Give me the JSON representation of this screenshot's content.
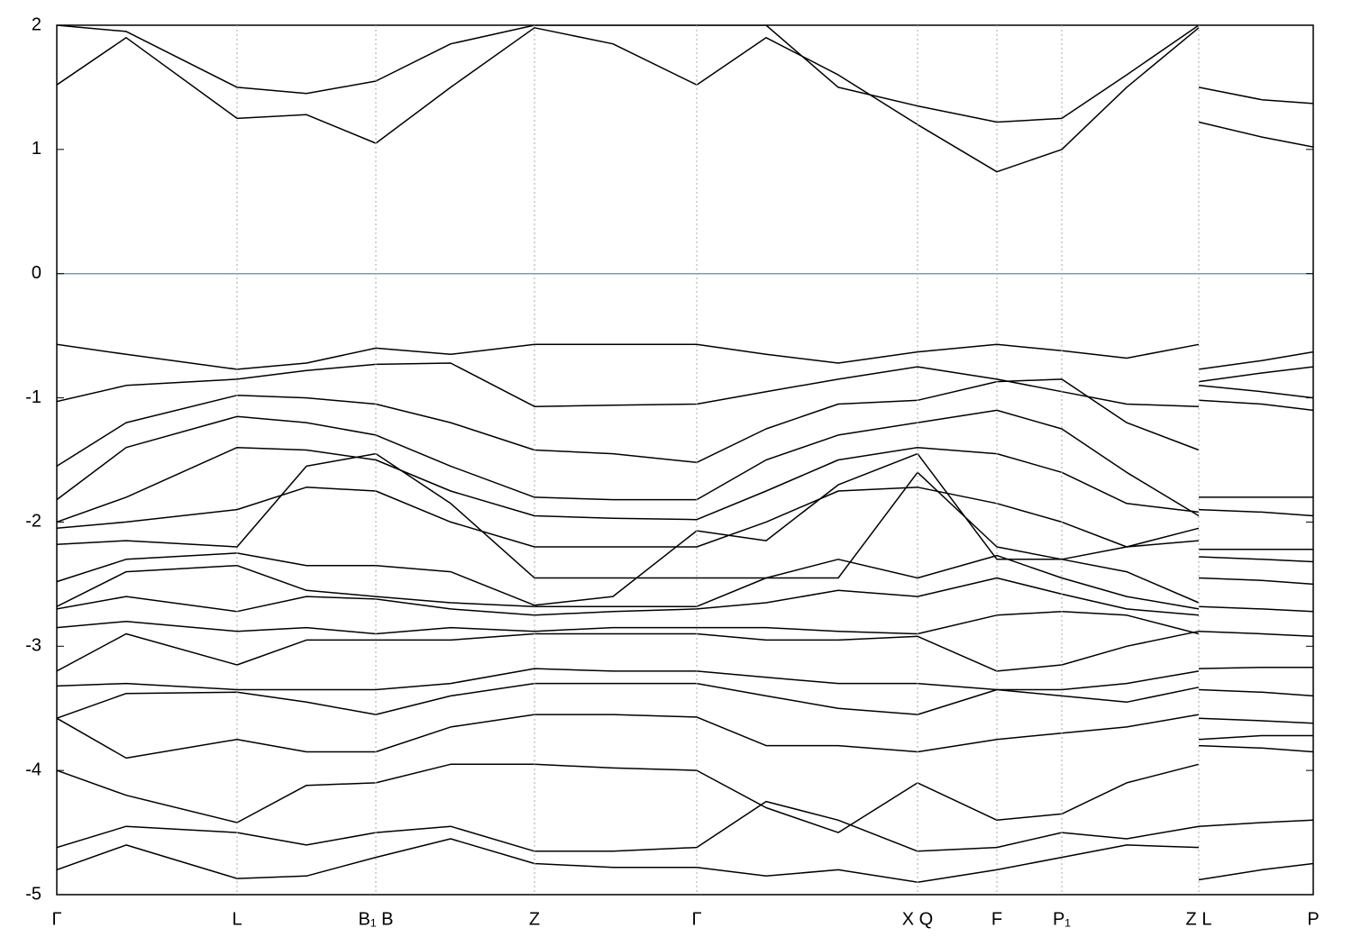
{
  "chart_data": {
    "type": "line",
    "x": [
      0,
      0.077,
      0.2,
      0.277,
      0.354,
      0.437,
      0.53,
      0.617,
      0.71,
      0.787,
      0.867,
      0.955,
      1.043,
      1.115,
      1.187,
      1.267,
      1.267,
      1.267,
      1.337,
      1.394
    ],
    "xlim": [
      0,
      1.394
    ],
    "xticks": [
      {
        "value": 0,
        "label": "Γ"
      },
      {
        "value": 0.2,
        "label": "L"
      },
      {
        "value": 0.354,
        "label": "B₁ B"
      },
      {
        "value": 0.53,
        "label": "Z"
      },
      {
        "value": 0.71,
        "label": "Γ"
      },
      {
        "value": 0.955,
        "label": "X Q"
      },
      {
        "value": 1.043,
        "label": "F"
      },
      {
        "value": 1.115,
        "label": "P₁"
      },
      {
        "value": 1.267,
        "label": "Z L"
      },
      {
        "value": 1.394,
        "label": "P"
      }
    ],
    "ylim": [
      -5,
      2
    ],
    "yticks": [
      -5,
      -4,
      -3,
      -2,
      -1,
      0,
      1,
      2
    ],
    "grid": "x-dotted",
    "reference_line": {
      "value": 0,
      "color": "#5aa9c7"
    },
    "series": [
      {
        "color": "#000000",
        "values": [
          1.52,
          1.9,
          1.25,
          1.28,
          1.05,
          1.5,
          1.98,
          1.85,
          1.52,
          1.9,
          1.6,
          1.2,
          0.82,
          1.0,
          1.5,
          1.98,
          null,
          1.22,
          1.1,
          1.02
        ]
      },
      {
        "color": "#000000",
        "values": [
          2.0,
          1.95,
          1.5,
          1.45,
          1.55,
          1.85,
          2.0,
          2.0,
          2.0,
          2.0,
          1.5,
          1.35,
          1.22,
          1.25,
          1.6,
          2.0,
          null,
          1.5,
          1.4,
          1.37
        ]
      },
      {
        "color": "#000000",
        "values": [
          -0.57,
          -0.65,
          -0.77,
          -0.72,
          -0.6,
          -0.65,
          -0.57,
          -0.57,
          -0.57,
          -0.65,
          -0.72,
          -0.63,
          -0.57,
          -0.62,
          -0.68,
          -0.57,
          null,
          -0.77,
          -0.7,
          -0.63
        ]
      },
      {
        "color": "#000000",
        "values": [
          -1.03,
          -0.9,
          -0.85,
          -0.78,
          -0.73,
          -0.72,
          -1.07,
          -1.06,
          -1.05,
          -0.95,
          -0.85,
          -0.75,
          -0.85,
          -0.95,
          -1.05,
          -1.07,
          null,
          -0.87,
          -0.8,
          -0.75
        ]
      },
      {
        "color": "#000000",
        "values": [
          -1.55,
          -1.2,
          -0.98,
          -1.0,
          -1.05,
          -1.2,
          -1.42,
          -1.45,
          -1.52,
          -1.25,
          -1.05,
          -1.02,
          -0.87,
          -0.85,
          -1.2,
          -1.42,
          null,
          -0.9,
          -0.95,
          -1.0
        ]
      },
      {
        "color": "#000000",
        "values": [
          -1.82,
          -1.4,
          -1.15,
          -1.2,
          -1.3,
          -1.55,
          -1.8,
          -1.82,
          -1.82,
          -1.5,
          -1.3,
          -1.2,
          -1.1,
          -1.25,
          -1.6,
          -1.95,
          null,
          -1.02,
          -1.05,
          -1.1
        ]
      },
      {
        "color": "#000000",
        "values": [
          -2.0,
          -1.8,
          -1.4,
          -1.42,
          -1.5,
          -1.75,
          -1.95,
          -1.97,
          -1.98,
          -1.75,
          -1.5,
          -1.4,
          -1.45,
          -1.6,
          -1.85,
          -1.92,
          null,
          -1.8,
          -1.8,
          -1.8
        ]
      },
      {
        "color": "#000000",
        "values": [
          -2.05,
          -2.0,
          -1.9,
          -1.72,
          -1.75,
          -2.0,
          -2.2,
          -2.2,
          -2.2,
          -2.0,
          -1.75,
          -1.72,
          -1.85,
          -2.0,
          -2.2,
          -2.05,
          null,
          -1.9,
          -1.92,
          -1.95
        ]
      },
      {
        "color": "#000000",
        "values": [
          -2.18,
          -2.15,
          -2.2,
          -1.55,
          -1.45,
          -1.85,
          -2.45,
          -2.45,
          -2.45,
          -2.45,
          -2.45,
          -1.6,
          -2.2,
          -2.3,
          -2.4,
          -2.65,
          null,
          -2.22,
          -2.22,
          -2.22
        ]
      },
      {
        "color": "#000000",
        "values": [
          -2.48,
          -2.3,
          -2.25,
          -2.35,
          -2.35,
          -2.4,
          -2.67,
          -2.6,
          -2.07,
          -2.15,
          -1.7,
          -1.45,
          -2.3,
          -2.3,
          -2.2,
          -2.15,
          null,
          -2.28,
          -2.3,
          -2.32
        ]
      },
      {
        "color": "#000000",
        "values": [
          -2.68,
          -2.4,
          -2.35,
          -2.55,
          -2.6,
          -2.65,
          -2.68,
          -2.68,
          -2.68,
          -2.45,
          -2.3,
          -2.45,
          -2.27,
          -2.45,
          -2.6,
          -2.7,
          null,
          -2.45,
          -2.47,
          -2.5
        ]
      },
      {
        "color": "#000000",
        "values": [
          -2.7,
          -2.6,
          -2.72,
          -2.6,
          -2.62,
          -2.7,
          -2.75,
          -2.72,
          -2.7,
          -2.65,
          -2.55,
          -2.6,
          -2.45,
          -2.58,
          -2.7,
          -2.75,
          null,
          -2.68,
          -2.7,
          -2.72
        ]
      },
      {
        "color": "#000000",
        "values": [
          -2.85,
          -2.8,
          -2.88,
          -2.85,
          -2.9,
          -2.85,
          -2.88,
          -2.85,
          -2.85,
          -2.85,
          -2.88,
          -2.9,
          -2.75,
          -2.72,
          -2.75,
          -2.9,
          null,
          -2.88,
          -2.9,
          -2.92
        ]
      },
      {
        "color": "#000000",
        "values": [
          -3.2,
          -2.9,
          -3.15,
          -2.95,
          -2.95,
          -2.95,
          -2.9,
          -2.9,
          -2.9,
          -2.95,
          -2.95,
          -2.92,
          -3.2,
          -3.15,
          -3.0,
          -2.88,
          null,
          -3.18,
          -3.17,
          -3.17
        ]
      },
      {
        "color": "#000000",
        "values": [
          -3.32,
          -3.3,
          -3.35,
          -3.35,
          -3.35,
          -3.3,
          -3.18,
          -3.2,
          -3.2,
          -3.25,
          -3.3,
          -3.3,
          -3.35,
          -3.35,
          -3.3,
          -3.2,
          null,
          -3.35,
          -3.37,
          -3.4
        ]
      },
      {
        "color": "#000000",
        "values": [
          -3.58,
          -3.38,
          -3.37,
          -3.45,
          -3.55,
          -3.4,
          -3.3,
          -3.3,
          -3.3,
          -3.4,
          -3.5,
          -3.55,
          -3.35,
          -3.4,
          -3.45,
          -3.33,
          null,
          -3.58,
          -3.6,
          -3.62
        ]
      },
      {
        "color": "#000000",
        "values": [
          -3.58,
          -3.9,
          -3.75,
          -3.85,
          -3.85,
          -3.65,
          -3.55,
          -3.55,
          -3.57,
          -3.8,
          -3.8,
          -3.85,
          -3.75,
          -3.7,
          -3.65,
          -3.55,
          null,
          -3.75,
          -3.72,
          -3.72
        ]
      },
      {
        "color": "#000000",
        "values": [
          -4.0,
          -4.2,
          -4.42,
          -4.12,
          -4.1,
          -3.95,
          -3.95,
          -3.98,
          -4.0,
          -4.3,
          -4.5,
          -4.1,
          -4.4,
          -4.35,
          -4.1,
          -3.95,
          null,
          -3.8,
          -3.82,
          -3.85
        ]
      },
      {
        "color": "#000000",
        "values": [
          -4.62,
          -4.45,
          -4.5,
          -4.6,
          -4.5,
          -4.45,
          -4.65,
          -4.65,
          -4.62,
          -4.25,
          -4.4,
          -4.65,
          -4.62,
          -4.5,
          -4.55,
          -4.45,
          null,
          -4.45,
          -4.42,
          -4.4
        ]
      },
      {
        "color": "#000000",
        "values": [
          -4.8,
          -4.6,
          -4.87,
          -4.85,
          -4.7,
          -4.55,
          -4.75,
          -4.78,
          -4.78,
          -4.85,
          -4.8,
          -4.9,
          -4.8,
          -4.7,
          -4.6,
          -4.62,
          null,
          -4.88,
          -4.8,
          -4.75
        ]
      }
    ]
  }
}
